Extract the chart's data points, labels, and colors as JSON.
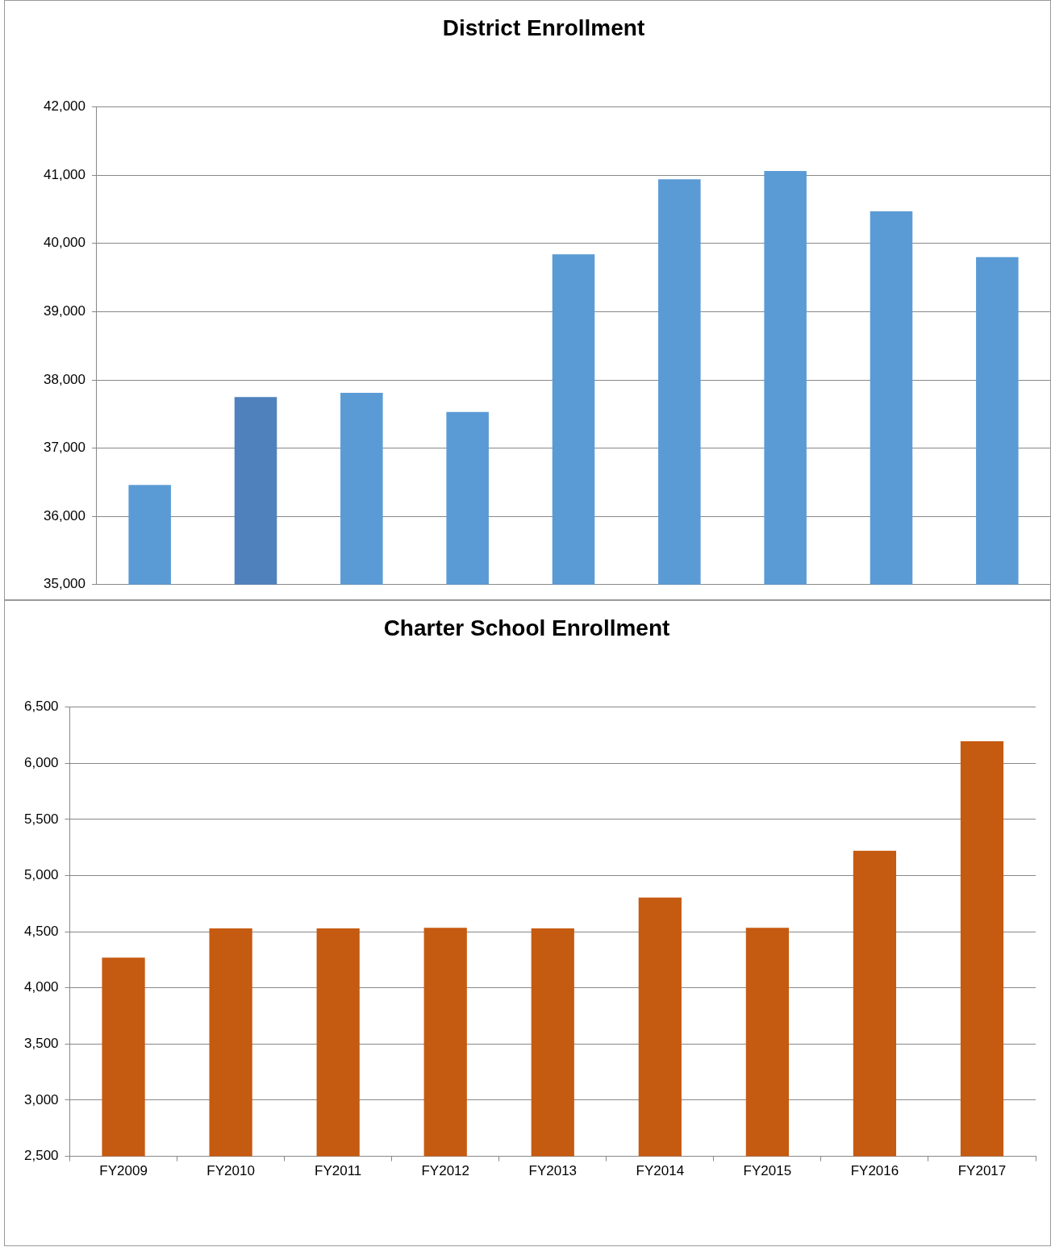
{
  "chart_data": [
    {
      "type": "bar",
      "title": "District Enrollment",
      "categories": [
        null,
        null,
        null,
        null,
        null,
        null,
        null,
        null,
        null
      ],
      "values": [
        36460,
        37750,
        37810,
        37530,
        39840,
        40940,
        41060,
        40470,
        39800
      ],
      "colors": [
        "#5b9bd5",
        "#4f81bd",
        "#5b9bd5",
        "#5b9bd5",
        "#5b9bd5",
        "#5b9bd5",
        "#5b9bd5",
        "#5b9bd5",
        "#5b9bd5"
      ],
      "ylim": [
        35000,
        42000
      ],
      "yticks": [
        {
          "value": 35000,
          "label": "35,000"
        },
        {
          "value": 36000,
          "label": "36,000"
        },
        {
          "value": 37000,
          "label": "37,000"
        },
        {
          "value": 38000,
          "label": "38,000"
        },
        {
          "value": 39000,
          "label": "39,000"
        },
        {
          "value": 40000,
          "label": "40,000"
        },
        {
          "value": 41000,
          "label": "41,000"
        },
        {
          "value": 42000,
          "label": "42,000"
        }
      ],
      "grid": "y",
      "tick_labels": "y"
    },
    {
      "type": "bar",
      "title": "Charter School Enrollment",
      "categories": [
        "FY2009",
        "FY2010",
        "FY2011",
        "FY2012",
        "FY2013",
        "FY2014",
        "FY2015",
        "FY2016",
        "FY2017"
      ],
      "values": [
        4270,
        4530,
        4530,
        4535,
        4530,
        4805,
        4535,
        5220,
        6195
      ],
      "color": "#c55a11",
      "ylim": [
        2500,
        6500
      ],
      "yticks": [
        {
          "value": 2500,
          "label": "2,500"
        },
        {
          "value": 3000,
          "label": "3,000"
        },
        {
          "value": 3500,
          "label": "3,500"
        },
        {
          "value": 4000,
          "label": "4,000"
        },
        {
          "value": 4500,
          "label": "4,500"
        },
        {
          "value": 5000,
          "label": "5,000"
        },
        {
          "value": 5500,
          "label": "5,500"
        },
        {
          "value": 6000,
          "label": "6,000"
        },
        {
          "value": 6500,
          "label": "6,500"
        }
      ],
      "grid": "y"
    }
  ]
}
